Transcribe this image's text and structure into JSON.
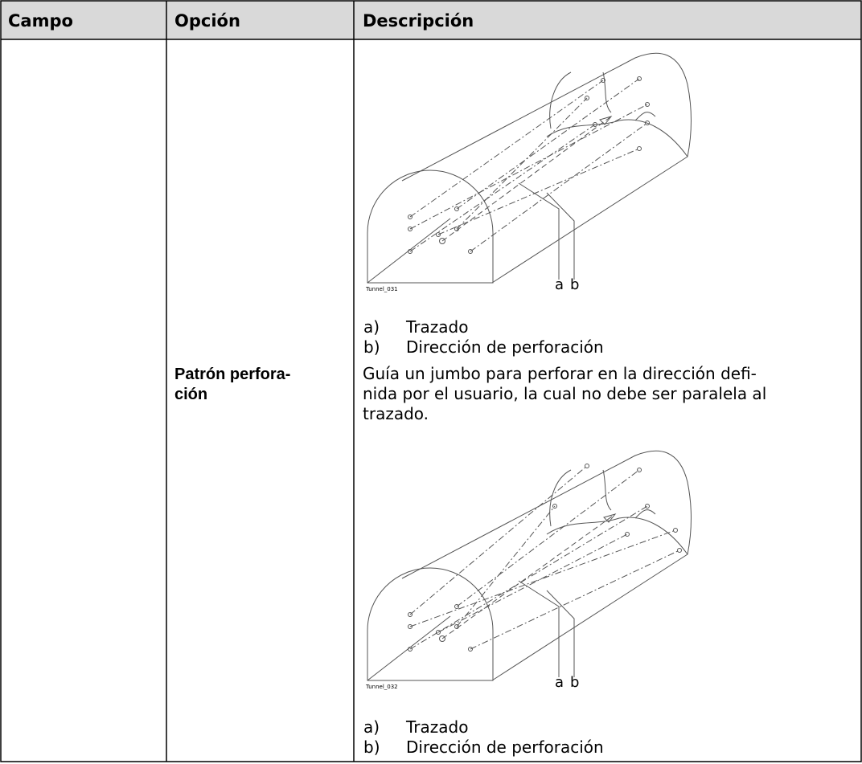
{
  "table": {
    "headers": [
      "Campo",
      "Opción",
      "Descripción"
    ],
    "option": [
      "Patrón perfora-",
      "ción"
    ],
    "description": [
      "Guía un jumbo para perforar en la dirección defi-",
      "nida por el usuario, la cual no debe ser paralela al",
      "trazado."
    ],
    "figures": [
      {
        "id": "Tunnel_031",
        "labels": [
          "a",
          "b"
        ],
        "legend": [
          {
            "key": "a)",
            "text": "Trazado"
          },
          {
            "key": "b)",
            "text": "Dirección de perforación"
          }
        ]
      },
      {
        "id": "Tunnel_032",
        "labels": [
          "a",
          "b"
        ],
        "legend": [
          {
            "key": "a)",
            "text": "Trazado"
          },
          {
            "key": "b)",
            "text": "Dirección de perforación"
          }
        ]
      }
    ]
  }
}
